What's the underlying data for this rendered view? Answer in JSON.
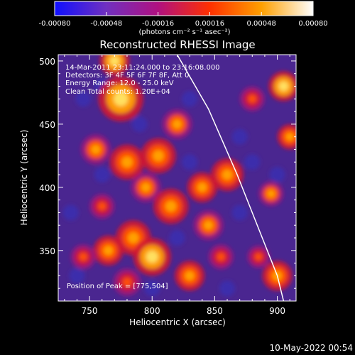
{
  "chart_data": {
    "type": "heatmap",
    "title": "Reconstructed RHESSI Image",
    "xlabel": "Heliocentric X (arcsec)",
    "ylabel": "Heliocentric Y (arcsec)",
    "xlim": [
      725,
      915
    ],
    "ylim": [
      310,
      505
    ],
    "x_ticks": [
      750,
      800,
      850,
      900
    ],
    "y_ticks": [
      350,
      400,
      450,
      500
    ],
    "x_tick_labels": [
      "750",
      "800",
      "850",
      "900"
    ],
    "y_tick_labels": [
      "350",
      "400",
      "450",
      "500"
    ],
    "colorbar": {
      "range": [
        -0.0008,
        0.0008
      ],
      "tick_values": [
        -0.0008,
        -0.00048,
        -0.00016,
        0.00016,
        0.00048,
        0.0008
      ],
      "tick_labels": [
        "-0.00080",
        "-0.00048",
        "-0.00016",
        "0.00016",
        "0.00048",
        "0.00080"
      ],
      "unit_label": "(photons cm⁻² s⁻¹ asec⁻²)",
      "colors": [
        "#1010ff",
        "#7030c0",
        "#b01080",
        "#ff3000",
        "#ffa000",
        "#ffffff"
      ]
    },
    "annotations": [
      "14-Mar-2011 23:11:24.000 to 23:16:08.000",
      "Detectors: 3F 4F 5F 6F 7F 8F, Att 0",
      "Energy Range: 12.0 - 25.0 keV",
      "Clean     Total counts: 1.20E+04"
    ],
    "peak_label": "Position of Peak = [775,504]",
    "peak": [
      775,
      504
    ],
    "limb_curve": [
      [
        820,
        505
      ],
      [
        845,
        462
      ],
      [
        868,
        410
      ],
      [
        888,
        360
      ],
      [
        900,
        330
      ],
      [
        905,
        310
      ]
    ],
    "hot_spots": [
      {
        "x": 775,
        "y": 470,
        "level": 1.0,
        "r": 18
      },
      {
        "x": 770,
        "y": 500,
        "level": 0.95,
        "r": 12
      },
      {
        "x": 755,
        "y": 430,
        "level": 0.75,
        "r": 12
      },
      {
        "x": 780,
        "y": 420,
        "level": 0.8,
        "r": 14
      },
      {
        "x": 805,
        "y": 425,
        "level": 0.85,
        "r": 14
      },
      {
        "x": 795,
        "y": 400,
        "level": 0.75,
        "r": 12
      },
      {
        "x": 760,
        "y": 385,
        "level": 0.7,
        "r": 10
      },
      {
        "x": 815,
        "y": 385,
        "level": 0.9,
        "r": 14
      },
      {
        "x": 840,
        "y": 400,
        "level": 0.8,
        "r": 12
      },
      {
        "x": 860,
        "y": 410,
        "level": 0.9,
        "r": 13
      },
      {
        "x": 845,
        "y": 370,
        "level": 0.75,
        "r": 12
      },
      {
        "x": 785,
        "y": 360,
        "level": 0.85,
        "r": 14
      },
      {
        "x": 800,
        "y": 345,
        "level": 0.95,
        "r": 15
      },
      {
        "x": 765,
        "y": 350,
        "level": 0.8,
        "r": 12
      },
      {
        "x": 745,
        "y": 345,
        "level": 0.7,
        "r": 10
      },
      {
        "x": 780,
        "y": 325,
        "level": 0.7,
        "r": 11
      },
      {
        "x": 830,
        "y": 330,
        "level": 0.8,
        "r": 12
      },
      {
        "x": 855,
        "y": 345,
        "level": 0.7,
        "r": 10
      },
      {
        "x": 820,
        "y": 450,
        "level": 0.75,
        "r": 12
      },
      {
        "x": 880,
        "y": 470,
        "level": 0.7,
        "r": 10
      },
      {
        "x": 905,
        "y": 480,
        "level": 0.95,
        "r": 12
      },
      {
        "x": 910,
        "y": 440,
        "level": 0.9,
        "r": 10
      },
      {
        "x": 895,
        "y": 395,
        "level": 0.75,
        "r": 10
      },
      {
        "x": 900,
        "y": 330,
        "level": 0.9,
        "r": 12
      },
      {
        "x": 885,
        "y": 345,
        "level": 0.7,
        "r": 9
      }
    ]
  },
  "footer": {
    "timestamp": "10-May-2022 00:54"
  }
}
